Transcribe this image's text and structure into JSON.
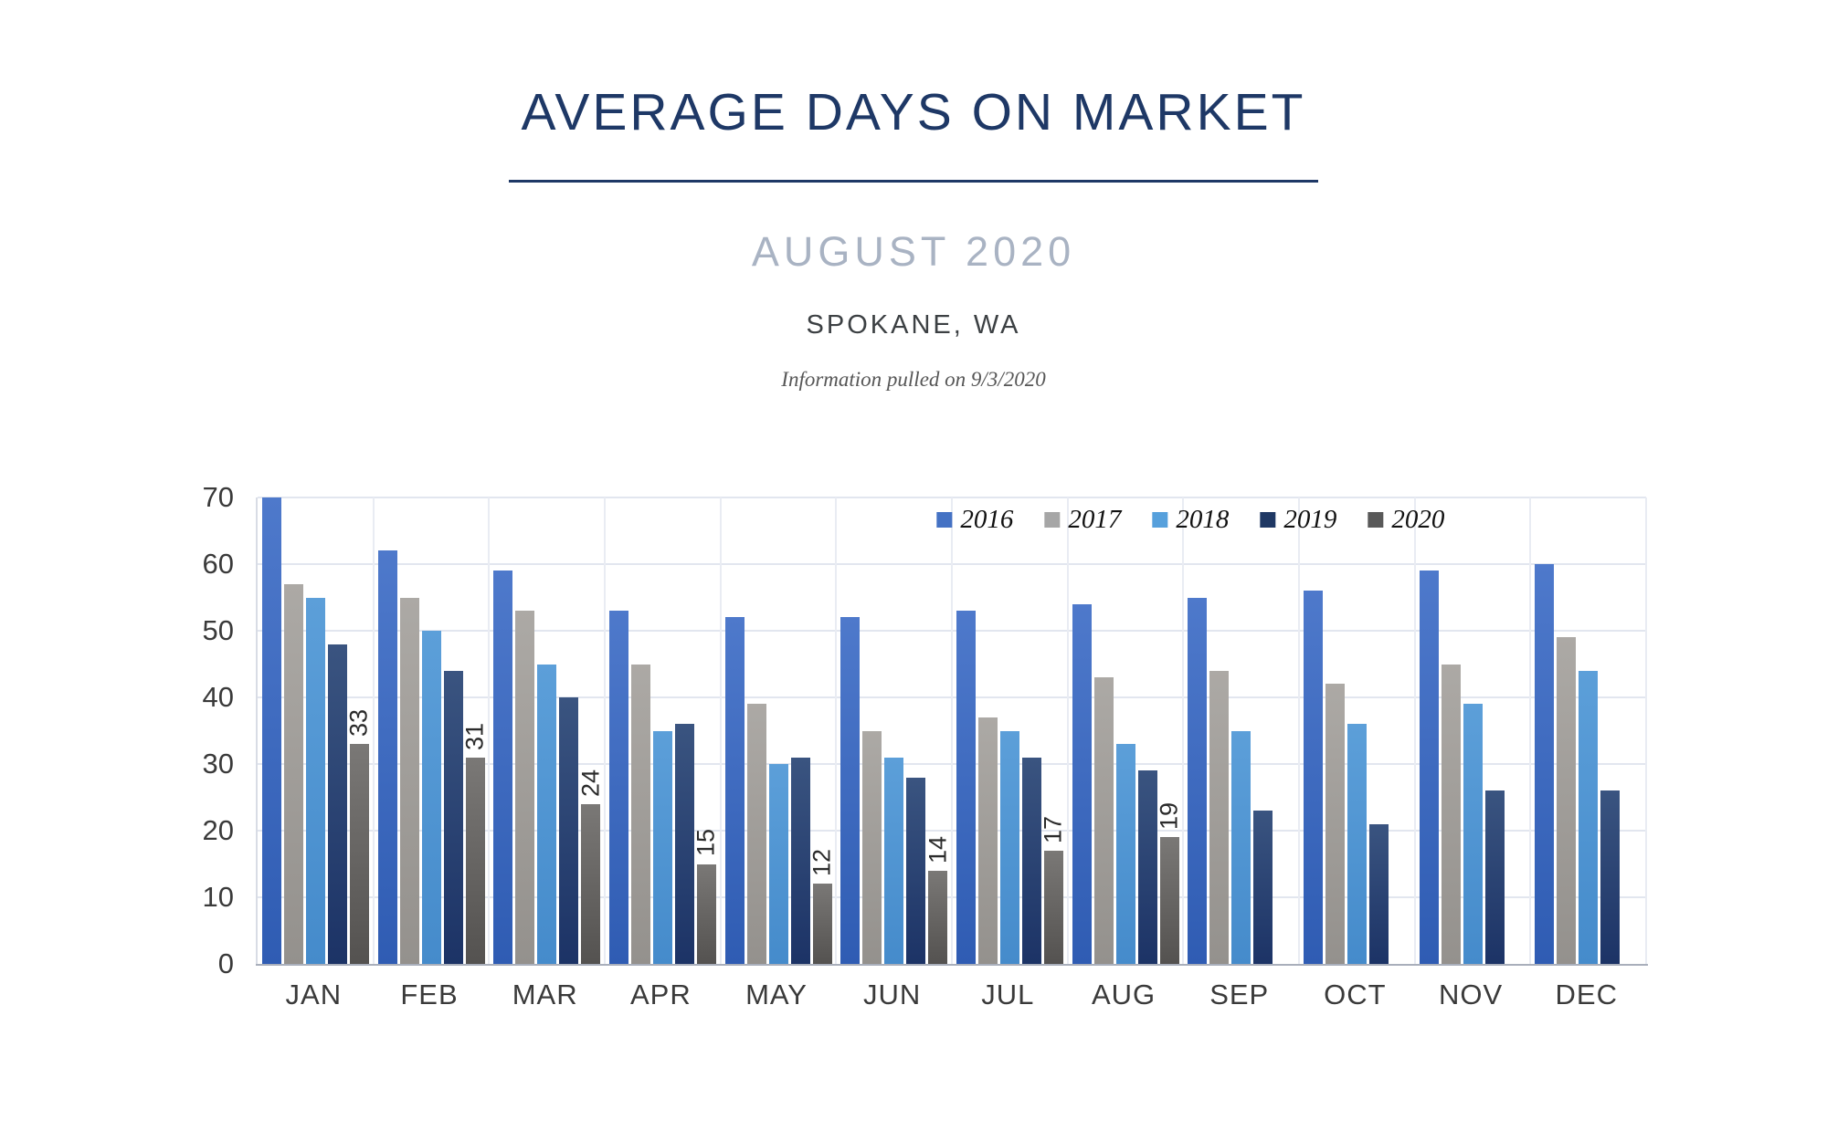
{
  "header": {
    "title": "AVERAGE DAYS ON MARKET",
    "subtitle": "AUGUST 2020",
    "location": "SPOKANE, WA",
    "note": "Information pulled on 9/3/2020"
  },
  "chart_data": {
    "type": "bar",
    "title": "AVERAGE DAYS ON MARKET",
    "subtitle": "AUGUST 2020",
    "categories": [
      "JAN",
      "FEB",
      "MAR",
      "APR",
      "MAY",
      "JUN",
      "JUL",
      "AUG",
      "SEP",
      "OCT",
      "NOV",
      "DEC"
    ],
    "series": [
      {
        "name": "2016",
        "legend_color": "#4472C4",
        "color_top": "#4E79CB",
        "color_bottom": "#2F5CB3",
        "values": [
          70,
          62,
          59,
          53,
          52,
          52,
          53,
          54,
          55,
          56,
          59,
          60
        ]
      },
      {
        "name": "2017",
        "legend_color": "#A6A6A6",
        "color_top": "#ACA9A5",
        "color_bottom": "#94918D",
        "values": [
          57,
          55,
          53,
          45,
          39,
          35,
          37,
          43,
          44,
          42,
          45,
          49
        ]
      },
      {
        "name": "2018",
        "legend_color": "#56A0DC",
        "color_top": "#5C9FD9",
        "color_bottom": "#458BCB",
        "values": [
          55,
          50,
          45,
          35,
          30,
          31,
          35,
          33,
          35,
          36,
          39,
          44
        ]
      },
      {
        "name": "2019",
        "legend_color": "#1F3864",
        "color_top": "#3A5480",
        "color_bottom": "#1C3366",
        "values": [
          48,
          44,
          40,
          36,
          31,
          28,
          31,
          29,
          23,
          21,
          26,
          26
        ]
      },
      {
        "name": "2020",
        "legend_color": "#595959",
        "color_top": "#7A7876",
        "color_bottom": "#545250",
        "values": [
          33,
          31,
          24,
          15,
          12,
          14,
          17,
          19,
          null,
          null,
          null,
          null
        ],
        "show_data_labels": true
      }
    ],
    "ylim": [
      0,
      70
    ],
    "ytick_step": 10,
    "yticks": [
      0,
      10,
      20,
      30,
      40,
      50,
      60,
      70
    ],
    "grid": true,
    "legend_position": "top-center",
    "data_label_rotation": -90,
    "colors": {
      "gridline": "#E2E6EF",
      "axis": "#A9AFBB",
      "title": "#1E3866",
      "subtitle": "#A9B3C3",
      "tick_label": "#3A3A3A"
    }
  }
}
